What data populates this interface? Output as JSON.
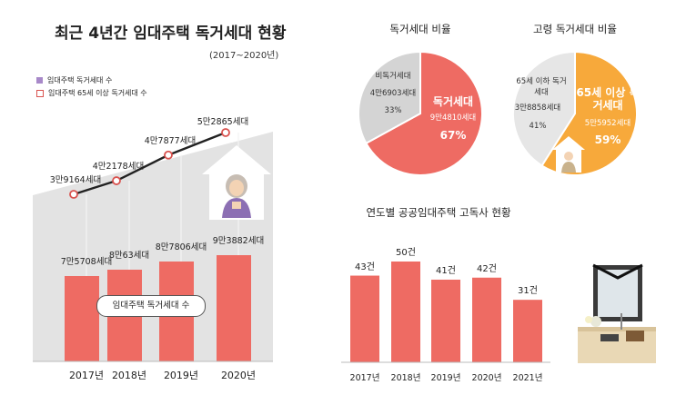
{
  "main_title": "최근 4년간 임대주택 독거세대 현황",
  "period": "(2017~2020년)",
  "legend": {
    "bar_label": "임대주택 독거세대 수",
    "line_label": "임대주택 65세 이상 독거세대 수"
  },
  "pill_label": "임대주택 독거세대 수",
  "pie1": {
    "title": "독거세대 비율",
    "slices": [
      {
        "name": "독거세대",
        "value": "9만4810세대",
        "percent": "67%",
        "share": 67,
        "color": "#ee6b63"
      },
      {
        "name": "비독거세대",
        "value": "4만6903세대",
        "percent": "33%",
        "share": 33,
        "color": "#d4d4d4"
      }
    ]
  },
  "pie2": {
    "title": "고령 독거세대 비율",
    "slices": [
      {
        "name": "65세 이상 독거세대",
        "value": "5만5952세대",
        "percent": "59%",
        "share": 59,
        "color": "#f7a93b"
      },
      {
        "name": "65세 이하 독거세대",
        "value": "3만8858세대",
        "percent": "41%",
        "share": 41,
        "color": "#e6e6e6"
      }
    ]
  },
  "chart_data": [
    {
      "type": "bar",
      "title": "최근 4년간 임대주택 독거세대 현황",
      "subtitle": "(2017~2020년)",
      "categories": [
        "2017년",
        "2018년",
        "2019년",
        "2020년"
      ],
      "series": [
        {
          "name": "임대주택 독거세대 수",
          "kind": "bar",
          "values": [
            75708,
            80063,
            87806,
            93882
          ],
          "labels": [
            "7만5708세대",
            "8만63세대",
            "8만7806세대",
            "9만3882세대"
          ],
          "color": "#ee6b63"
        },
        {
          "name": "임대주택 65세 이상 독거세대 수",
          "kind": "line",
          "values": [
            39164,
            42178,
            47877,
            52865
          ],
          "labels": [
            "3만9164세대",
            "4만2178세대",
            "4만7877세대",
            "5만2865세대"
          ],
          "color": "#222222"
        }
      ],
      "legend_position": "top-left"
    },
    {
      "type": "pie",
      "title": "독거세대 비율",
      "categories": [
        "독거세대",
        "비독거세대"
      ],
      "values": [
        67,
        33
      ],
      "counts": [
        94810,
        46903
      ]
    },
    {
      "type": "pie",
      "title": "고령 독거세대 비율",
      "categories": [
        "65세 이상 독거세대",
        "65세 이하 독거세대"
      ],
      "values": [
        59,
        41
      ],
      "counts": [
        55952,
        38858
      ]
    },
    {
      "type": "bar",
      "title": "연도별 공공임대주택 고독사 현황",
      "categories": [
        "2017년",
        "2018년",
        "2019년",
        "2020년",
        "2021년"
      ],
      "values": [
        43,
        50,
        41,
        42,
        31
      ],
      "labels": [
        "43건",
        "50건",
        "41건",
        "42건",
        "31건"
      ],
      "color": "#ee6b63"
    }
  ],
  "bar2_title": "연도별 공공임대주택 고독사 현황",
  "colors": {
    "bar": "#ee6b63",
    "backdrop": "#e3e3e3",
    "orange": "#f7a93b",
    "grey": "#d4d4d4"
  }
}
